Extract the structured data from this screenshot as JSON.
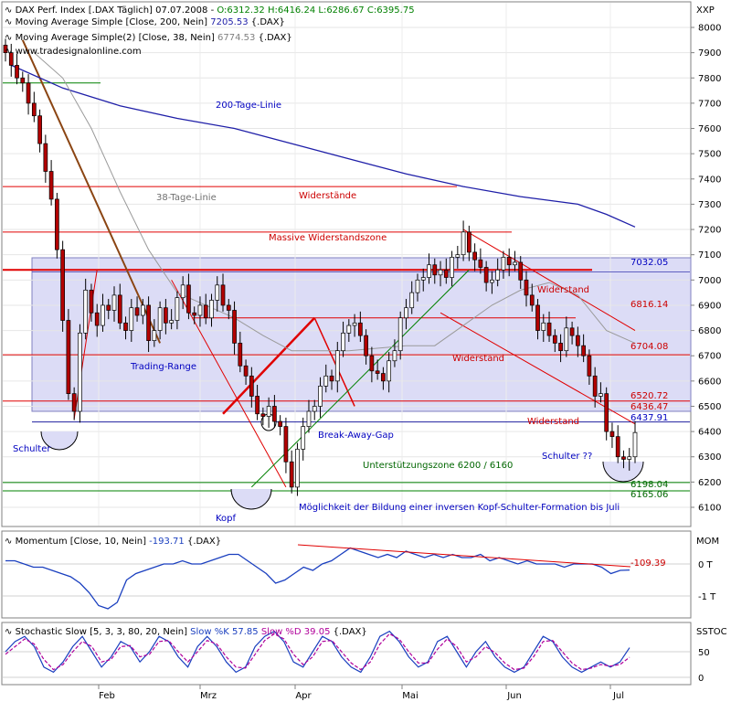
{
  "colors": {
    "band": "#dcdcf6",
    "candle_up": "#ffffff",
    "candle_down": "#b20000",
    "ma200": "#1f1fa8",
    "ma38": "#9a9a9a",
    "resistance": "#e00000",
    "support": "#008000",
    "trend_brown": "#8b4513",
    "blue_text": "#0000c0",
    "red_text": "#cc0000",
    "green_text": "#006600",
    "momentum": "#1a3fbf",
    "stoch_k": "#1a3fbf",
    "stoch_d": "#b0009a"
  },
  "header": {
    "line1_prefix": "DAX Perf. Index [.DAX  Täglich] 07.07.2008 - ",
    "line1_ohlc": "O:6312.32 H:6416.24 L:6286.67 C:6395.75",
    "line2_text": "Moving Average Simple [Close, 200, Nein] ",
    "line2_value": "7205.53",
    "line2_suffix": " {.DAX}",
    "line3_text": "Moving Average Simple(2) [Close, 38, Nein] ",
    "line3_value": "6774.53",
    "line3_suffix": " {.DAX}",
    "line4_text": "www.tradesignalonline.com"
  },
  "symbols": {
    "main": "XXP",
    "momentum": "MOM",
    "stochastic": "SSTOC"
  },
  "momentum_header": {
    "text": "Momentum [Close, 10, Nein] ",
    "value": "-193.71",
    "suffix": " {.DAX}"
  },
  "stoch_header": {
    "text": "Stochastic Slow [5, 3, 3, 80, 20, Nein] ",
    "k_text": "Slow %K 57.85",
    "d_text": "Slow %D 39.05",
    "suffix": " {.DAX}"
  },
  "annotations": {
    "ma200": "200-Tage-Linie",
    "ma38": "38-Tage-Linie",
    "widerstaende": "Widerstände",
    "massive": "Massive Widerstandszone",
    "widerstand1": "Widerstand",
    "widerstand2": "Widerstand",
    "widerstand3": "Widerstand",
    "trading_range": "Trading-Range",
    "breakaway": "Break-Away-Gap",
    "unterstuetzung": "Unterstützungszone 6200 / 6160",
    "moeglichkeit": "Möglichkeit der Bildung einer inversen Kopf-Schulter-Formation bis Juli",
    "schulter_left": "Schulter",
    "kopf": "Kopf",
    "schulter_right": "Schulter ??"
  },
  "price_levels": {
    "l7032": "7032.05",
    "l6816": "6816.14",
    "l6704": "6704.08",
    "l6520": "6520.72",
    "l6436": "6436.47",
    "l6437": "6437.91",
    "l6198": "6198.04",
    "l6165": "6165.06",
    "mom_level": "-109.39"
  },
  "chart_data": [
    {
      "type": "candlestick",
      "title": "DAX Perf. Index [.DAX  Täglich] 07.07.2008",
      "ylim": [
        6000,
        8100
      ],
      "yticks": [
        6100,
        6200,
        6300,
        6400,
        6500,
        6600,
        6700,
        6800,
        6900,
        7000,
        7100,
        7200,
        7300,
        7400,
        7500,
        7600,
        7700,
        7800,
        7900,
        8000
      ],
      "x_labels": [
        "Feb",
        "Mrz",
        "Apr",
        "Mai",
        "Jun",
        "Jul"
      ],
      "close": [
        7900,
        7850,
        7800,
        7780,
        7700,
        7650,
        7540,
        7430,
        7320,
        7120,
        6840,
        6550,
        6480,
        6790,
        6960,
        6870,
        6820,
        6900,
        6880,
        6940,
        6830,
        6800,
        6890,
        6860,
        6900,
        6760,
        6800,
        6890,
        6830,
        6840,
        6930,
        6980,
        6870,
        6860,
        6900,
        6850,
        6920,
        6980,
        6900,
        6880,
        6750,
        6660,
        6620,
        6540,
        6470,
        6460,
        6500,
        6440,
        6420,
        6280,
        6180,
        6330,
        6420,
        6480,
        6500,
        6580,
        6620,
        6600,
        6720,
        6790,
        6820,
        6830,
        6780,
        6700,
        6640,
        6630,
        6600,
        6680,
        6720,
        6850,
        6890,
        6950,
        7000,
        7010,
        7060,
        7020,
        7040,
        7010,
        7090,
        7100,
        7190,
        7110,
        7080,
        7050,
        6990,
        7000,
        7040,
        7090,
        7060,
        7070,
        7000,
        6940,
        6900,
        6800,
        6830,
        6780,
        6750,
        6720,
        6810,
        6780,
        6740,
        6700,
        6620,
        6540,
        6550,
        6400,
        6380,
        6300,
        6290,
        6300,
        6396
      ],
      "ma200": [
        7850,
        7760,
        7690,
        7640,
        7600,
        7540,
        7480,
        7420,
        7370,
        7330,
        7300,
        7260,
        7210
      ],
      "ma200_x": [
        1,
        10,
        20,
        30,
        40,
        50,
        60,
        70,
        80,
        90,
        100,
        105,
        110
      ],
      "ma38": [
        7900,
        7800,
        7600,
        7350,
        7120,
        6950,
        6850,
        6780,
        6720,
        6720,
        6740,
        6740,
        6900,
        6960,
        6990,
        6940,
        6800,
        6750
      ],
      "ma38_x": [
        5,
        10,
        15,
        20,
        25,
        30,
        40,
        45,
        50,
        60,
        70,
        75,
        85,
        90,
        95,
        100,
        105,
        110
      ],
      "levels": [
        7032.05,
        6816.14,
        6704.08,
        6520.72,
        6436.47,
        6437.91,
        6198.04,
        6165.06
      ]
    },
    {
      "type": "line",
      "title": "Momentum [Close, 10, Nein]",
      "yticks": [
        "0 T",
        "-1 T"
      ],
      "series": [
        {
          "name": "Momentum",
          "values": [
            0.1,
            0.1,
            0.0,
            -0.1,
            -0.1,
            -0.2,
            -0.3,
            -0.4,
            -0.6,
            -0.9,
            -1.3,
            -1.4,
            -1.2,
            -0.5,
            -0.3,
            -0.2,
            -0.1,
            0.0,
            0.0,
            0.1,
            0.0,
            0.0,
            0.1,
            0.2,
            0.3,
            0.3,
            0.1,
            -0.1,
            -0.3,
            -0.6,
            -0.5,
            -0.3,
            -0.1,
            -0.2,
            0.0,
            0.1,
            0.3,
            0.5,
            0.4,
            0.3,
            0.2,
            0.3,
            0.2,
            0.4,
            0.3,
            0.2,
            0.3,
            0.2,
            0.3,
            0.2,
            0.2,
            0.3,
            0.1,
            0.2,
            0.1,
            0.0,
            0.1,
            0.0,
            0.0,
            0.0,
            -0.1,
            0.0,
            0.0,
            0.0,
            -0.1,
            -0.3,
            -0.2,
            -0.19
          ]
        }
      ],
      "level": -109.39
    },
    {
      "type": "line",
      "title": "Stochastic Slow [5, 3, 3, 80, 20, Nein]",
      "ylim": [
        0,
        100
      ],
      "yticks": [
        0,
        50
      ],
      "series": [
        {
          "name": "Slow %K",
          "values": [
            50,
            70,
            80,
            60,
            20,
            10,
            30,
            60,
            80,
            50,
            20,
            40,
            70,
            60,
            30,
            50,
            80,
            70,
            40,
            20,
            60,
            80,
            60,
            30,
            10,
            20,
            60,
            80,
            90,
            70,
            30,
            20,
            50,
            80,
            70,
            40,
            20,
            10,
            40,
            80,
            90,
            70,
            40,
            20,
            30,
            70,
            80,
            50,
            20,
            50,
            70,
            40,
            20,
            10,
            20,
            50,
            80,
            70,
            40,
            20,
            10,
            20,
            30,
            20,
            30,
            57.85
          ]
        },
        {
          "name": "Slow %D",
          "values": [
            45,
            60,
            75,
            65,
            35,
            15,
            25,
            50,
            70,
            60,
            30,
            35,
            60,
            62,
            40,
            45,
            70,
            72,
            50,
            30,
            50,
            72,
            65,
            40,
            20,
            18,
            45,
            72,
            85,
            75,
            45,
            25,
            40,
            70,
            72,
            50,
            28,
            15,
            30,
            65,
            85,
            75,
            50,
            28,
            28,
            55,
            75,
            60,
            30,
            40,
            60,
            48,
            28,
            15,
            18,
            40,
            70,
            72,
            50,
            28,
            15,
            18,
            25,
            22,
            25,
            39.05
          ]
        }
      ]
    }
  ]
}
